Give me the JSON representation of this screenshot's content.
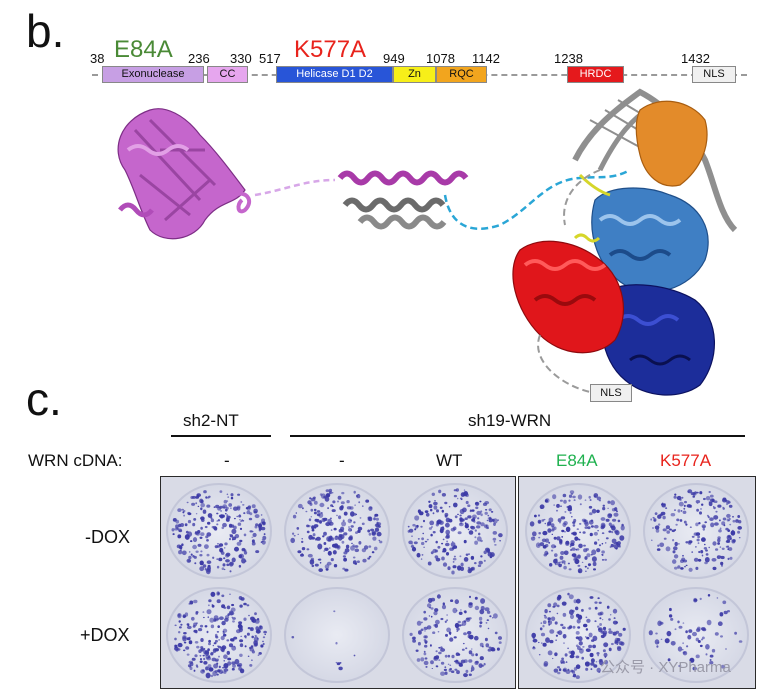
{
  "panel_b": {
    "letter": "b.",
    "positions": [
      "38",
      "236",
      "330",
      "517",
      "949",
      "1078",
      "1142",
      "1238",
      "1432"
    ],
    "mutations": [
      {
        "label": "E84A",
        "color": "#4a8a36"
      },
      {
        "label": "K577A",
        "color": "#e8231c"
      }
    ],
    "domains": [
      {
        "label": "Exonuclease",
        "color": "#c79fe4"
      },
      {
        "label": "CC",
        "color": "#e6a6ee"
      },
      {
        "label": "Helicase D1 D2",
        "color": "#2855d8",
        "text_color": "#ffffff"
      },
      {
        "label": "Zn",
        "color": "#f7ef19"
      },
      {
        "label": "RQC",
        "color": "#f2a51e"
      },
      {
        "label": "HRDC",
        "color": "#e5191c",
        "text_color": "#ffffff"
      },
      {
        "label": "NLS",
        "color": "#f0f0f0"
      }
    ],
    "structure_nls_label": "NLS"
  },
  "panel_c": {
    "letter": "c.",
    "group_sh2": "sh2-NT",
    "group_sh19": "sh19-WRN",
    "cdna_label": "WRN cDNA:",
    "cdna_values": [
      {
        "label": "-",
        "color": "#111111"
      },
      {
        "label": "-",
        "color": "#111111"
      },
      {
        "label": "WT",
        "color": "#111111"
      },
      {
        "label": "E84A",
        "color": "#1fb14f"
      },
      {
        "label": "K577A",
        "color": "#e8231c"
      }
    ],
    "row_labels": [
      "-DOX",
      "+DOX"
    ],
    "colony_density": [
      [
        0.9,
        0.8,
        0.8,
        0.85,
        0.75
      ],
      [
        0.95,
        0.03,
        0.65,
        0.7,
        0.25
      ]
    ]
  },
  "watermark": "公众号 · XYPharma",
  "colors": {
    "crystal_violet": "#3c3aa6",
    "plate_bg": "#d9dbe6"
  }
}
